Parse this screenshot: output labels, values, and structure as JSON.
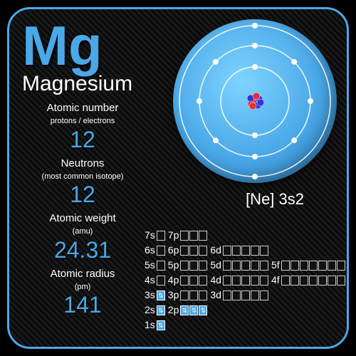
{
  "element": {
    "symbol": "Mg",
    "name": "Magnesium",
    "electron_config_short": "[Ne] 3s2"
  },
  "properties": [
    {
      "label": "Atomic number",
      "sublabel": "protons / electrons",
      "value": "12"
    },
    {
      "label": "Neutrons",
      "sublabel": "(most common isotope)",
      "value": "12"
    },
    {
      "label": "Atomic weight",
      "sublabel": "(amu)",
      "value": "24.31"
    },
    {
      "label": "Atomic radius",
      "sublabel": "(pm)",
      "value": "141"
    }
  ],
  "colors": {
    "accent": "#4aa8e8",
    "text": "#ffffff",
    "bg_dark": "#0a0a0a",
    "orbit": "#ffffff"
  },
  "atom_diagram": {
    "shells": [
      {
        "radius": 48,
        "electrons": 2
      },
      {
        "radius": 78,
        "electrons": 8
      },
      {
        "radius": 106,
        "electrons": 2
      }
    ],
    "electron_dot_r": 4,
    "nucleus_r": 18
  },
  "orbital_rows": [
    [
      {
        "l": "7s",
        "n": 1,
        "f": 0
      },
      {
        "l": "7p",
        "n": 3,
        "f": 0
      }
    ],
    [
      {
        "l": "6s",
        "n": 1,
        "f": 0
      },
      {
        "l": "6p",
        "n": 3,
        "f": 0
      },
      {
        "l": "6d",
        "n": 5,
        "f": 0
      }
    ],
    [
      {
        "l": "5s",
        "n": 1,
        "f": 0
      },
      {
        "l": "5p",
        "n": 3,
        "f": 0
      },
      {
        "l": "5d",
        "n": 5,
        "f": 0
      },
      {
        "l": "5f",
        "n": 7,
        "f": 0
      }
    ],
    [
      {
        "l": "4s",
        "n": 1,
        "f": 0
      },
      {
        "l": "4p",
        "n": 3,
        "f": 0
      },
      {
        "l": "4d",
        "n": 5,
        "f": 0
      },
      {
        "l": "4f",
        "n": 7,
        "f": 0
      }
    ],
    [
      {
        "l": "3s",
        "n": 1,
        "f": 1
      },
      {
        "l": "3p",
        "n": 3,
        "f": 0
      },
      {
        "l": "3d",
        "n": 5,
        "f": 0
      }
    ],
    [
      {
        "l": "2s",
        "n": 1,
        "f": 1
      },
      {
        "l": "2p",
        "n": 3,
        "f": 3
      }
    ],
    [
      {
        "l": "1s",
        "n": 1,
        "f": 1
      }
    ]
  ]
}
